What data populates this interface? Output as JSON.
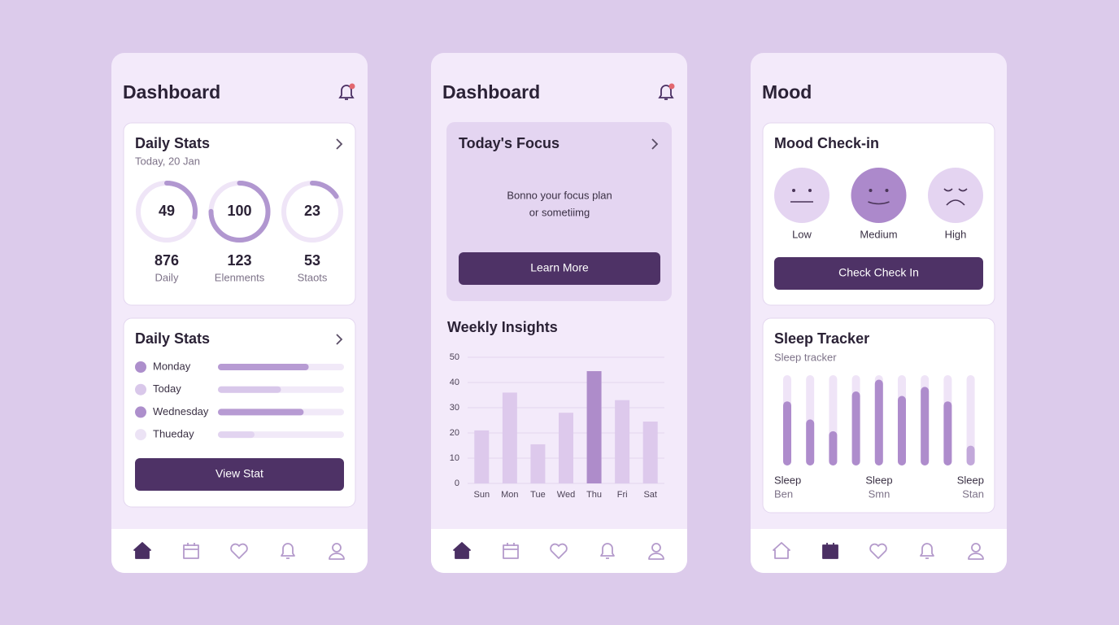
{
  "screens": [
    {
      "title": "Dashboard",
      "active_nav": 0,
      "stats_card": {
        "title": "Daily Stats",
        "subtitle": "Today, 20 Jan",
        "rings": [
          {
            "value": 49,
            "progress": 28
          },
          {
            "value": 100,
            "progress": 75
          },
          {
            "value": 23,
            "progress": 16
          }
        ],
        "totals": [
          {
            "value": 876,
            "label": "Daily"
          },
          {
            "value": 123,
            "label": "Elenments"
          },
          {
            "value": 53,
            "label": "Staots"
          }
        ]
      },
      "list_card": {
        "title": "Daily Stats",
        "rows": [
          {
            "label": "Monday",
            "progress": 72
          },
          {
            "label": "Today",
            "progress": 50
          },
          {
            "label": "Wednesday",
            "progress": 68
          },
          {
            "label": "Thueday",
            "progress": 29
          }
        ],
        "button": "View Stat"
      }
    },
    {
      "title": "Dashboard",
      "active_nav": 0,
      "focus_card": {
        "title": "Today's Focus",
        "text_lines": [
          "Bonno your focus plan",
          "or sometiimg"
        ],
        "button": "Learn More"
      },
      "insights": {
        "title": "Weekly Insights",
        "categories": [
          "Sun",
          "Mon",
          "Tue",
          "Wed",
          "Thu",
          "Fri",
          "Sat"
        ],
        "values": [
          21,
          36,
          15.5,
          28,
          44.5,
          33,
          24.5
        ],
        "ylim": [
          0,
          50
        ],
        "yticks": [
          0,
          10,
          20,
          30,
          40,
          50
        ],
        "highlight": 4
      }
    },
    {
      "title": "Mood",
      "active_nav": 1,
      "mood_card": {
        "title": "Mood Check-in",
        "options": [
          "Low",
          "Medium",
          "High"
        ],
        "selected": 1,
        "button": "Check Check In"
      },
      "sleep_card": {
        "title": "Sleep Tracker",
        "subtitle": "Sleep tracker",
        "values": [
          71,
          51,
          38,
          82,
          95,
          77,
          87,
          71,
          22
        ],
        "labels": [
          {
            "title": "Sleep",
            "sub": "Ben"
          },
          {
            "title": "Sleep",
            "sub": "Smn"
          },
          {
            "title": "Sleep",
            "sub": "Stan"
          }
        ]
      }
    }
  ]
}
